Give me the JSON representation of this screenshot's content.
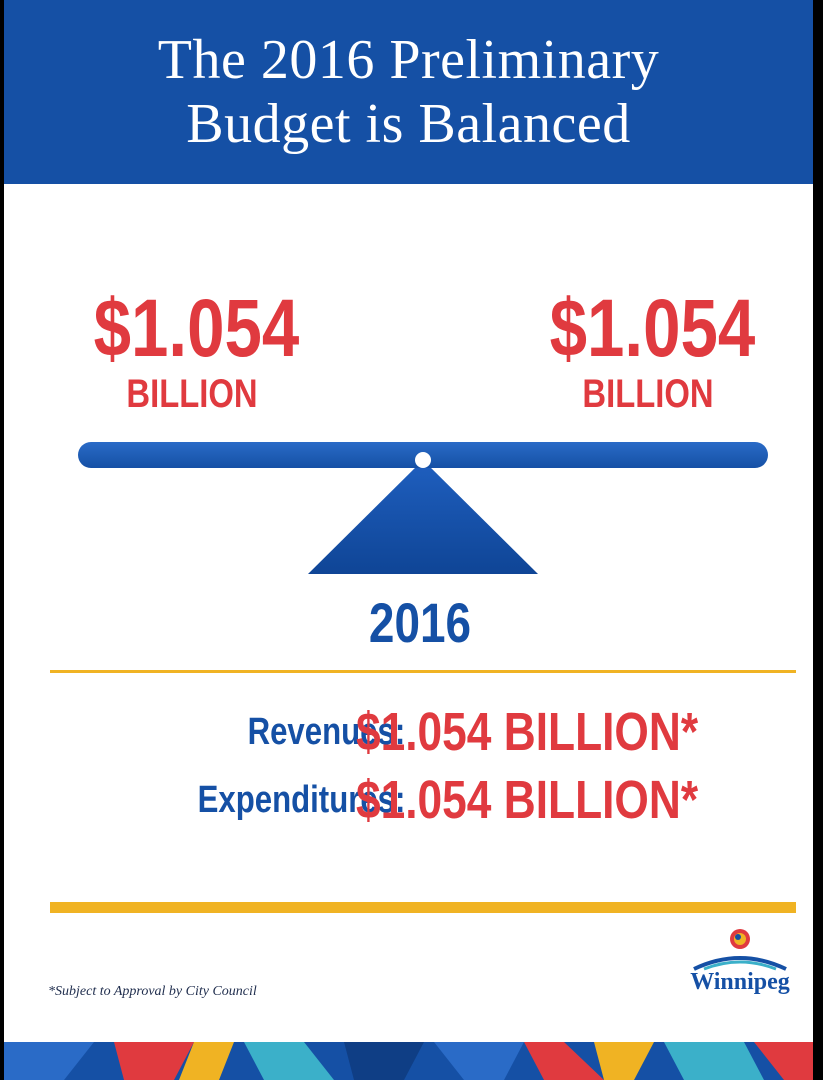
{
  "header": {
    "title_line1": "The 2016 Preliminary",
    "title_line2": "Budget is Balanced"
  },
  "scale": {
    "left": {
      "amount": "$1.054",
      "unit": "BILLION"
    },
    "right": {
      "amount": "$1.054",
      "unit": "BILLION"
    },
    "year": "2016"
  },
  "summary": {
    "revenues": {
      "label": "Revenues:",
      "value": "$1.054 BILLION*"
    },
    "expenditures": {
      "label": "Expenditures:",
      "value": "$1.054 BILLION*"
    }
  },
  "footnote": "*Subject to Approval by City Council",
  "logo": {
    "name": "Winnipeg",
    "icon": "winnipeg-logo-icon"
  },
  "colors": {
    "header_blue": "#1550a5",
    "accent_red": "#e03a3f",
    "gold": "#f0b323"
  }
}
